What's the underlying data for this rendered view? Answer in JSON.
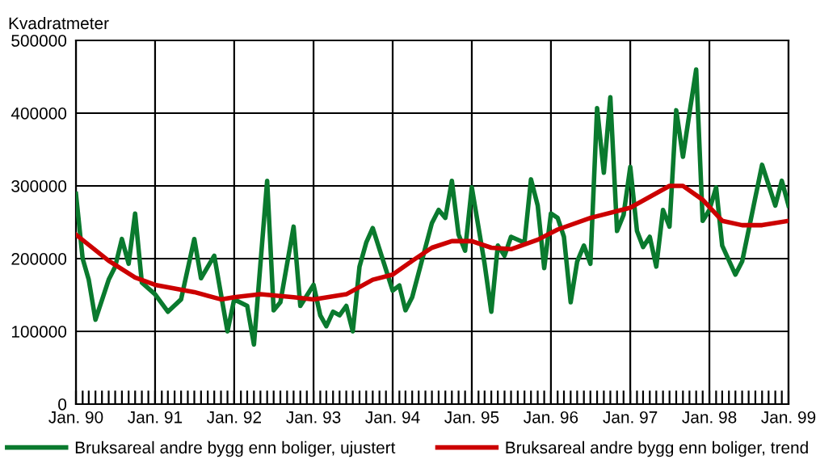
{
  "chart_data": {
    "type": "line",
    "ylabel": "Kvadratmeter",
    "ylim": [
      0,
      500000
    ],
    "yticks": [
      0,
      100000,
      200000,
      300000,
      400000,
      500000
    ],
    "xlim": [
      "1990-01",
      "1999-01"
    ],
    "xticks": [
      {
        "value": "1990-01",
        "label": "Jan. 90"
      },
      {
        "value": "1990-02",
        "label": null
      },
      {
        "value": "1990-03",
        "label": null
      },
      {
        "value": "1990-04",
        "label": null
      },
      {
        "value": "1990-05",
        "label": null
      },
      {
        "value": "1990-06",
        "label": null
      },
      {
        "value": "1990-07",
        "label": null
      },
      {
        "value": "1990-08",
        "label": null
      },
      {
        "value": "1990-09",
        "label": null
      },
      {
        "value": "1990-10",
        "label": null
      },
      {
        "value": "1990-11",
        "label": null
      },
      {
        "value": "1990-12",
        "label": null
      },
      {
        "value": "1991-01",
        "label": "Jan. 91"
      },
      {
        "value": "1991-02",
        "label": null
      },
      {
        "value": "1991-03",
        "label": null
      },
      {
        "value": "1991-04",
        "label": null
      },
      {
        "value": "1991-05",
        "label": null
      },
      {
        "value": "1991-06",
        "label": null
      },
      {
        "value": "1991-07",
        "label": null
      },
      {
        "value": "1991-08",
        "label": null
      },
      {
        "value": "1991-09",
        "label": null
      },
      {
        "value": "1991-10",
        "label": null
      },
      {
        "value": "1991-11",
        "label": null
      },
      {
        "value": "1991-12",
        "label": null
      },
      {
        "value": "1992-01",
        "label": "Jan. 92"
      },
      {
        "value": "1992-02",
        "label": null
      },
      {
        "value": "1992-03",
        "label": null
      },
      {
        "value": "1992-04",
        "label": null
      },
      {
        "value": "1992-05",
        "label": null
      },
      {
        "value": "1992-06",
        "label": null
      },
      {
        "value": "1992-07",
        "label": null
      },
      {
        "value": "1992-08",
        "label": null
      },
      {
        "value": "1992-09",
        "label": null
      },
      {
        "value": "1992-10",
        "label": null
      },
      {
        "value": "1992-11",
        "label": null
      },
      {
        "value": "1992-12",
        "label": null
      },
      {
        "value": "1993-01",
        "label": "Jan. 93"
      },
      {
        "value": "1993-02",
        "label": null
      },
      {
        "value": "1993-03",
        "label": null
      },
      {
        "value": "1993-04",
        "label": null
      },
      {
        "value": "1993-05",
        "label": null
      },
      {
        "value": "1993-06",
        "label": null
      },
      {
        "value": "1993-07",
        "label": null
      },
      {
        "value": "1993-08",
        "label": null
      },
      {
        "value": "1993-09",
        "label": null
      },
      {
        "value": "1993-10",
        "label": null
      },
      {
        "value": "1993-11",
        "label": null
      },
      {
        "value": "1993-12",
        "label": null
      },
      {
        "value": "1994-01",
        "label": "Jan. 94"
      },
      {
        "value": "1994-02",
        "label": null
      },
      {
        "value": "1994-03",
        "label": null
      },
      {
        "value": "1994-04",
        "label": null
      },
      {
        "value": "1994-05",
        "label": null
      },
      {
        "value": "1994-06",
        "label": null
      },
      {
        "value": "1994-07",
        "label": null
      },
      {
        "value": "1994-08",
        "label": null
      },
      {
        "value": "1994-09",
        "label": null
      },
      {
        "value": "1994-10",
        "label": null
      },
      {
        "value": "1994-11",
        "label": null
      },
      {
        "value": "1994-12",
        "label": null
      },
      {
        "value": "1995-01",
        "label": "Jan. 95"
      },
      {
        "value": "1995-02",
        "label": null
      },
      {
        "value": "1995-03",
        "label": null
      },
      {
        "value": "1995-04",
        "label": null
      },
      {
        "value": "1995-05",
        "label": null
      },
      {
        "value": "1995-06",
        "label": null
      },
      {
        "value": "1995-07",
        "label": null
      },
      {
        "value": "1995-08",
        "label": null
      },
      {
        "value": "1995-09",
        "label": null
      },
      {
        "value": "1995-10",
        "label": null
      },
      {
        "value": "1995-11",
        "label": null
      },
      {
        "value": "1995-12",
        "label": null
      },
      {
        "value": "1996-01",
        "label": "Jan. 96"
      },
      {
        "value": "1996-02",
        "label": null
      },
      {
        "value": "1996-03",
        "label": null
      },
      {
        "value": "1996-04",
        "label": null
      },
      {
        "value": "1996-05",
        "label": null
      },
      {
        "value": "1996-06",
        "label": null
      },
      {
        "value": "1996-07",
        "label": null
      },
      {
        "value": "1996-08",
        "label": null
      },
      {
        "value": "1996-09",
        "label": null
      },
      {
        "value": "1996-10",
        "label": null
      },
      {
        "value": "1996-11",
        "label": null
      },
      {
        "value": "1996-12",
        "label": null
      },
      {
        "value": "1997-01",
        "label": "Jan. 97"
      },
      {
        "value": "1997-02",
        "label": null
      },
      {
        "value": "1997-03",
        "label": null
      },
      {
        "value": "1997-04",
        "label": null
      },
      {
        "value": "1997-05",
        "label": null
      },
      {
        "value": "1997-06",
        "label": null
      },
      {
        "value": "1997-07",
        "label": null
      },
      {
        "value": "1997-08",
        "label": null
      },
      {
        "value": "1997-09",
        "label": null
      },
      {
        "value": "1997-10",
        "label": null
      },
      {
        "value": "1997-11",
        "label": null
      },
      {
        "value": "1997-12",
        "label": null
      },
      {
        "value": "1998-01",
        "label": "Jan. 98"
      },
      {
        "value": "1998-02",
        "label": null
      },
      {
        "value": "1998-03",
        "label": null
      },
      {
        "value": "1998-04",
        "label": null
      },
      {
        "value": "1998-05",
        "label": null
      },
      {
        "value": "1998-06",
        "label": null
      },
      {
        "value": "1998-07",
        "label": null
      },
      {
        "value": "1998-08",
        "label": null
      },
      {
        "value": "1998-09",
        "label": null
      },
      {
        "value": "1998-10",
        "label": null
      },
      {
        "value": "1998-11",
        "label": null
      },
      {
        "value": "1998-12",
        "label": null
      },
      {
        "value": "1999-01",
        "label": "Jan. 99"
      }
    ],
    "grid": true,
    "legend": "bottom",
    "marker": "none",
    "line_style": "solid",
    "series": [
      {
        "name": "Bruksareal andre bygg enn boliger, ujustert",
        "color": "#0a7a2e",
        "x": [
          "1990-01",
          "1990-02",
          "1990-03",
          "1990-04",
          "1990-06",
          "1990-07",
          "1990-08",
          "1990-09",
          "1990-10",
          "1990-11",
          "1991-01",
          "1991-03",
          "1991-05",
          "1991-07",
          "1991-08",
          "1991-10",
          "1991-12",
          "1992-01",
          "1992-03",
          "1992-04",
          "1992-06",
          "1992-07",
          "1992-08",
          "1992-10",
          "1992-11",
          "1993-01",
          "1993-02",
          "1993-03",
          "1993-04",
          "1993-05",
          "1993-06",
          "1993-07",
          "1993-08",
          "1993-09",
          "1993-10",
          "1994-01",
          "1994-02",
          "1994-03",
          "1994-04",
          "1994-07",
          "1994-08",
          "1994-09",
          "1994-10",
          "1994-11",
          "1994-12",
          "1995-01",
          "1995-03",
          "1995-04",
          "1995-05",
          "1995-06",
          "1995-07",
          "1995-09",
          "1995-10",
          "1995-11",
          "1995-12",
          "1996-01",
          "1996-02",
          "1996-03",
          "1996-04",
          "1996-05",
          "1996-06",
          "1996-07",
          "1996-08",
          "1996-09",
          "1996-10",
          "1996-11",
          "1996-12",
          "1997-01",
          "1997-02",
          "1997-03",
          "1997-04",
          "1997-05",
          "1997-06",
          "1997-07",
          "1997-08",
          "1997-09",
          "1997-10",
          "1997-11",
          "1997-12",
          "1998-01",
          "1998-02",
          "1998-03",
          "1998-05",
          "1998-06",
          "1998-09",
          "1998-11",
          "1998-12",
          "1999-01"
        ],
        "values": [
          289000,
          200000,
          171000,
          116000,
          171000,
          189000,
          227000,
          193000,
          262000,
          167000,
          151000,
          127000,
          144000,
          227000,
          173000,
          204000,
          100000,
          144000,
          135000,
          82000,
          307000,
          129000,
          140000,
          244000,
          135000,
          164000,
          122000,
          107000,
          127000,
          122000,
          135000,
          100000,
          189000,
          222000,
          242000,
          156000,
          163000,
          129000,
          147000,
          249000,
          267000,
          256000,
          307000,
          233000,
          211000,
          298000,
          193000,
          127000,
          218000,
          204000,
          230000,
          222000,
          309000,
          273000,
          187000,
          262000,
          256000,
          230000,
          140000,
          196000,
          218000,
          193000,
          407000,
          318000,
          422000,
          238000,
          260000,
          326000,
          238000,
          216000,
          230000,
          189000,
          267000,
          244000,
          404000,
          340000,
          400000,
          460000,
          252000,
          267000,
          298000,
          218000,
          178000,
          196000,
          329000,
          273000,
          307000,
          273000
        ]
      },
      {
        "name": "Bruksareal andre bygg enn boliger, trend",
        "color": "#cc0000",
        "x": [
          "1990-01",
          "1990-06",
          "1990-10",
          "1991-01",
          "1991-07",
          "1991-11",
          "1992-01",
          "1992-05",
          "1992-10",
          "1993-01",
          "1993-06",
          "1993-10",
          "1994-01",
          "1994-04",
          "1994-07",
          "1994-10",
          "1995-01",
          "1995-04",
          "1995-07",
          "1995-11",
          "1996-02",
          "1996-07",
          "1997-01",
          "1997-07",
          "1997-09",
          "1997-12",
          "1998-03",
          "1998-06",
          "1998-09",
          "1999-01"
        ],
        "values": [
          233000,
          197000,
          174000,
          164000,
          154000,
          144000,
          147000,
          151000,
          147000,
          144000,
          151000,
          171000,
          178000,
          197000,
          215000,
          224000,
          224000,
          215000,
          213000,
          226000,
          240000,
          256000,
          270000,
          300000,
          300000,
          281000,
          252000,
          246000,
          246000,
          252000
        ]
      }
    ]
  }
}
